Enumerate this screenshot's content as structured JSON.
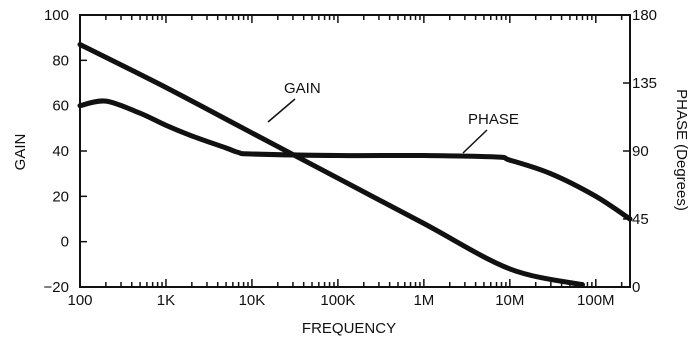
{
  "chart_data": {
    "type": "line",
    "xlabel": "FREQUENCY",
    "ylabel_left": "GAIN",
    "ylabel_right": "PHASE (Degrees)",
    "x_scale": "log",
    "x_ticks": [
      100,
      1000,
      10000,
      100000,
      1000000,
      10000000,
      100000000
    ],
    "x_tick_labels": [
      "100",
      "1K",
      "10K",
      "100K",
      "1M",
      "10M",
      "100M"
    ],
    "xlim": [
      100,
      250000000
    ],
    "ylim_left": [
      -20,
      100
    ],
    "y_ticks_left": [
      100,
      80,
      60,
      40,
      20,
      0,
      -20
    ],
    "y_tick_labels_left": [
      "100",
      "80",
      "60",
      "40",
      "20",
      "0",
      "−20"
    ],
    "ylim_right": [
      0,
      180
    ],
    "y_ticks_right": [
      180,
      135,
      90,
      45,
      0
    ],
    "y_tick_labels_right": [
      "180",
      "135",
      "90",
      "45",
      "0"
    ],
    "series": [
      {
        "name": "GAIN",
        "axis": "left",
        "x": [
          100,
          1000,
          10000,
          100000,
          1000000,
          10000000,
          70000000
        ],
        "y": [
          87,
          68,
          48,
          28,
          8,
          -12,
          -19
        ]
      },
      {
        "name": "PHASE",
        "axis": "right",
        "x": [
          100,
          200,
          500,
          1000,
          2000,
          5000,
          7000,
          10000,
          100000,
          1000000,
          7000000,
          10000000,
          30000000,
          100000000,
          250000000
        ],
        "y": [
          120,
          123,
          115,
          107,
          100,
          92,
          89,
          88,
          87,
          87,
          86,
          84,
          75,
          60,
          45
        ]
      }
    ]
  }
}
